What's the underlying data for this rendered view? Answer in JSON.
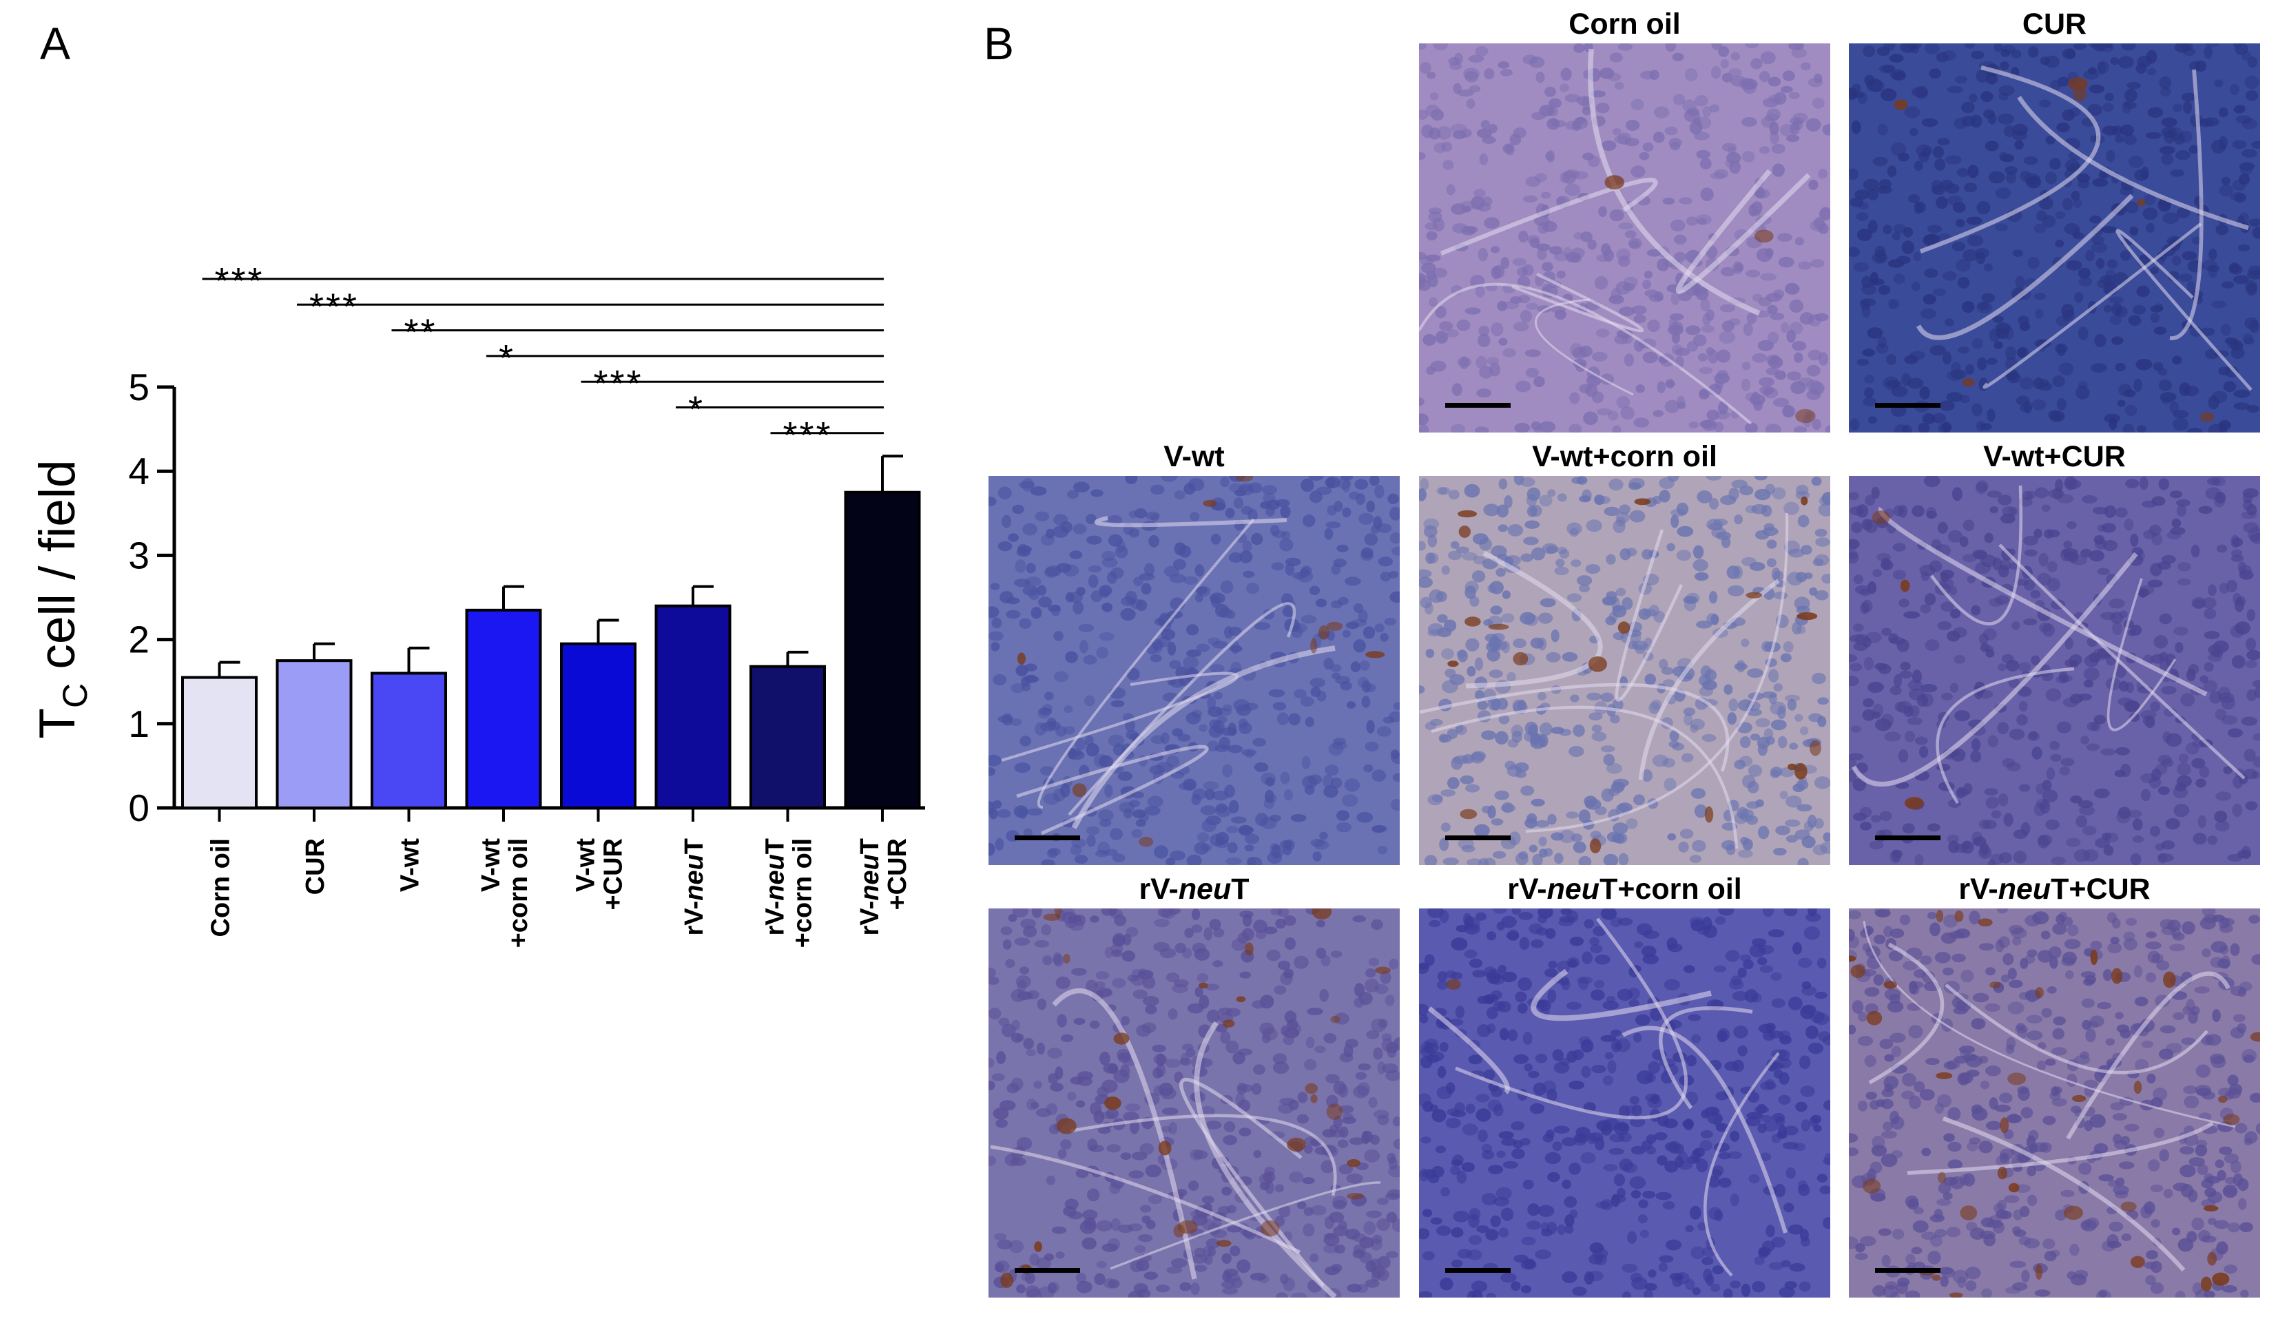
{
  "panel_a": {
    "letter": "A",
    "chart_data": {
      "type": "bar",
      "ylabel_main": "T",
      "ylabel_sub": "C",
      "ylabel_rest": " cell / field",
      "ylim": [
        0,
        5
      ],
      "yticks": [
        "0",
        "1",
        "2",
        "3",
        "4",
        "5"
      ],
      "categories": [
        {
          "lines": [
            [
              "Corn oil",
              false
            ]
          ]
        },
        {
          "lines": [
            [
              "CUR",
              false
            ]
          ]
        },
        {
          "lines": [
            [
              "V-wt",
              false
            ]
          ]
        },
        {
          "lines": [
            [
              "V-wt",
              false
            ],
            [
              "+corn oil",
              false
            ]
          ]
        },
        {
          "lines": [
            [
              "V-wt",
              false
            ],
            [
              "+CUR",
              false
            ]
          ]
        },
        {
          "lines": [
            [
              "rV-",
              false
            ],
            [
              "neu",
              true
            ],
            [
              "T",
              false
            ]
          ],
          "inline": true
        },
        {
          "lines": [
            [
              "rV-",
              false
            ],
            [
              "neu",
              true
            ],
            [
              "T",
              false
            ],
            [
              "|",
              false
            ],
            [
              "+corn oil",
              false
            ]
          ],
          "split": true
        },
        {
          "lines": [
            [
              "rV-",
              false
            ],
            [
              "neu",
              true
            ],
            [
              "T",
              false
            ],
            [
              "|",
              false
            ],
            [
              "+CUR",
              false
            ]
          ],
          "split": true
        }
      ],
      "values": [
        1.55,
        1.75,
        1.6,
        2.35,
        1.95,
        2.4,
        1.68,
        3.75
      ],
      "errors": [
        0.18,
        0.2,
        0.3,
        0.28,
        0.28,
        0.23,
        0.17,
        0.43
      ],
      "bar_colors": [
        "#e3e3f3",
        "#9a9cf6",
        "#4a47f4",
        "#1a17f2",
        "#0a0ad6",
        "#0e0a9a",
        "#10106a",
        "#030318"
      ],
      "significance": [
        {
          "from": 0,
          "to": 7,
          "label": "***"
        },
        {
          "from": 1,
          "to": 7,
          "label": "***"
        },
        {
          "from": 2,
          "to": 7,
          "label": "**"
        },
        {
          "from": 3,
          "to": 7,
          "label": "*"
        },
        {
          "from": 4,
          "to": 7,
          "label": "***"
        },
        {
          "from": 5,
          "to": 7,
          "label": "*"
        },
        {
          "from": 6,
          "to": 7,
          "label": "***"
        }
      ]
    }
  },
  "panel_b": {
    "letter": "B",
    "images": [
      {
        "title": [
          [
            "Corn oil",
            false
          ]
        ],
        "bg": "#a08cc0",
        "cell": "#7d6fb0",
        "brown": 0.05
      },
      {
        "title": [
          [
            "CUR",
            false
          ]
        ],
        "bg": "#3a4b9a",
        "cell": "#2a3580",
        "brown": 0.1
      },
      {
        "title": [
          [
            "V-wt",
            false
          ]
        ],
        "bg": "#6a72b4",
        "cell": "#4a52a0",
        "brown": 0.15
      },
      {
        "title": [
          [
            "V-wt+corn oil",
            false
          ]
        ],
        "bg": "#b0a4b8",
        "cell": "#6a74b0",
        "brown": 0.3
      },
      {
        "title": [
          [
            "V-wt+CUR",
            false
          ]
        ],
        "bg": "#6a62a8",
        "cell": "#4a4490",
        "brown": 0.05
      },
      {
        "title": [
          [
            "rV-",
            false
          ],
          [
            "neu",
            true
          ],
          [
            "T",
            false
          ]
        ],
        "bg": "#7a74ac",
        "cell": "#5a5098",
        "brown": 0.45
      },
      {
        "title": [
          [
            "rV-",
            false
          ],
          [
            "neu",
            true
          ],
          [
            "T+corn oil",
            false
          ]
        ],
        "bg": "#5a5ab0",
        "cell": "#3a3a98",
        "brown": 0.02
      },
      {
        "title": [
          [
            "rV-",
            false
          ],
          [
            "neu",
            true
          ],
          [
            "T+CUR",
            false
          ]
        ],
        "bg": "#8a7aa8",
        "cell": "#5a5096",
        "brown": 0.6
      }
    ]
  }
}
